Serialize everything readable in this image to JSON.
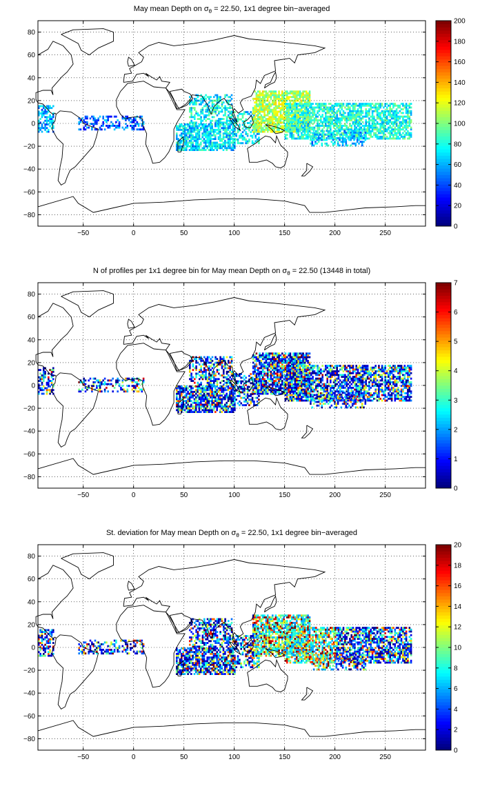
{
  "panels": [
    {
      "title_prefix": "May mean Depth on ",
      "title_sigma": "σ",
      "title_sub": "θ",
      "title_suffix": " = 22.50, 1x1 degree bin−averaged",
      "colorbar": {
        "min": 0,
        "max": 200,
        "ticks": [
          "0",
          "20",
          "40",
          "60",
          "80",
          "100",
          "120",
          "140",
          "160",
          "180",
          "200"
        ]
      },
      "x_ticks": [
        "−50",
        "0",
        "50",
        "100",
        "150",
        "200",
        "250"
      ],
      "y_ticks": [
        "80",
        "60",
        "40",
        "20",
        "0",
        "−20",
        "−40",
        "−60",
        "−80"
      ]
    },
    {
      "title_prefix": "N of profiles per 1x1 degree bin for May mean Depth on ",
      "title_sigma": "σ",
      "title_sub": "θ",
      "title_suffix": " = 22.50 (13448 in total)",
      "colorbar": {
        "min": 0,
        "max": 7,
        "ticks": [
          "0",
          "1",
          "2",
          "3",
          "4",
          "5",
          "6",
          "7"
        ]
      },
      "x_ticks": [
        "−50",
        "0",
        "50",
        "100",
        "150",
        "200",
        "250"
      ],
      "y_ticks": [
        "80",
        "60",
        "40",
        "20",
        "0",
        "−20",
        "−40",
        "−60",
        "−80"
      ]
    },
    {
      "title_prefix": "St. deviation for May mean Depth on ",
      "title_sigma": "σ",
      "title_sub": "θ",
      "title_suffix": " = 22.50, 1x1 degree bin−averaged",
      "colorbar": {
        "min": 0,
        "max": 20,
        "ticks": [
          "0",
          "2",
          "4",
          "6",
          "8",
          "10",
          "12",
          "14",
          "16",
          "18",
          "20"
        ]
      },
      "x_ticks": [
        "−50",
        "0",
        "50",
        "100",
        "150",
        "200",
        "250"
      ],
      "y_ticks": [
        "80",
        "60",
        "40",
        "20",
        "0",
        "−20",
        "−40",
        "−60",
        "−80"
      ]
    }
  ],
  "map_extent": {
    "lon": [
      -95,
      290
    ],
    "lat": [
      -90,
      90
    ]
  },
  "colormap": "jet"
}
